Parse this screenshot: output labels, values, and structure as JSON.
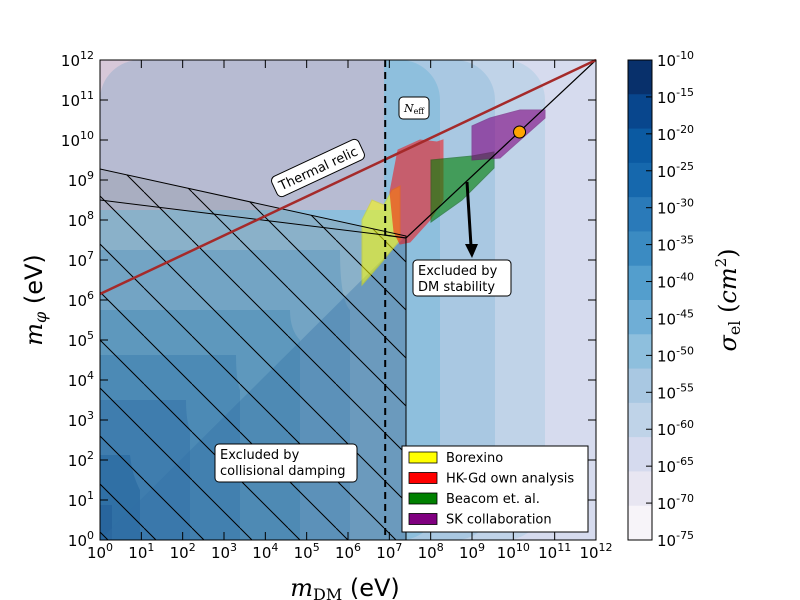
{
  "chart_data": {
    "type": "contour",
    "x_scale": "log",
    "y_scale": "log",
    "xlim_exp": [
      0,
      12
    ],
    "ylim_exp": [
      0,
      12
    ],
    "xlabel": "m_DM (eV)",
    "ylabel": "m_φ (eV)",
    "x_tick_exponents": [
      0,
      1,
      2,
      3,
      4,
      5,
      6,
      7,
      8,
      9,
      10,
      11,
      12
    ],
    "y_tick_exponents": [
      0,
      1,
      2,
      3,
      4,
      5,
      6,
      7,
      8,
      9,
      10,
      11,
      12
    ],
    "colorbar": {
      "label": "σ_el (cm²)",
      "tick_exponents": [
        -10,
        -15,
        -20,
        -25,
        -30,
        -35,
        -40,
        -45,
        -50,
        -55,
        -60,
        -65,
        -70,
        -75
      ],
      "colors": [
        "#08306b",
        "#08468d",
        "#0b5aa2",
        "#1668ad",
        "#2a7ab9",
        "#3b8bc2",
        "#539ecd",
        "#6faed6",
        "#8ebfdd",
        "#a9c8e2",
        "#bfd3e8",
        "#d5daee",
        "#e8e6f2",
        "#f7f4f9"
      ]
    },
    "annotations": {
      "thermal_relic": "Thermal relic",
      "n_eff": "N_eff",
      "dm_stability_l1": "Excluded by",
      "dm_stability_l2": "DM stability",
      "collisional_l1": "Excluded by",
      "collisional_l2": "collisional damping"
    },
    "series": [
      {
        "name": "Borexino",
        "color": "#ffff00"
      },
      {
        "name": "HK-Gd own analysis",
        "color": "#ff0000"
      },
      {
        "name": "Beacom et. al.",
        "color": "#008000"
      },
      {
        "name": "SK collaboration",
        "color": "#800080"
      }
    ],
    "thermal_relic_line": {
      "x": [
        0,
        12
      ],
      "y": [
        6.15,
        12
      ],
      "color": "#a52a2a"
    },
    "n_eff_bound_x": 6.9,
    "marker_point": {
      "x": 10.15,
      "y": 10.2,
      "color": "#ffa500"
    }
  }
}
